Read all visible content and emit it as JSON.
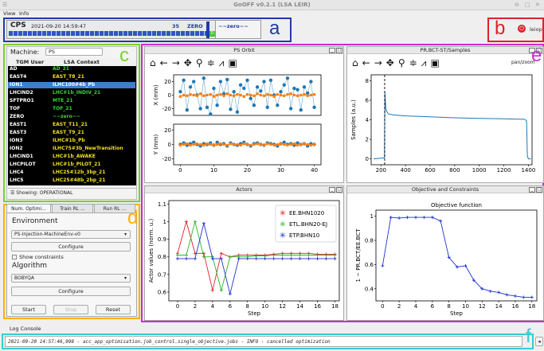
{
  "window": {
    "title": "GoOFF v0.2.1 (LSA LEIR)",
    "controls": [
      "⊖",
      "□",
      "✕"
    ]
  },
  "menu": [
    "View",
    "Info"
  ],
  "timing": {
    "machine": "CPS",
    "timestamp": "2021-09-20 14:59:47",
    "cycle": "35",
    "user": "ZERO",
    "user2": "~~zero~~",
    "badge": "0.1s"
  },
  "user_badge": "leiop",
  "labels": {
    "a": "a",
    "b": "b",
    "c": "c",
    "d": "d",
    "e": "e",
    "f": "f"
  },
  "colors": {
    "blue": "#1f3ba8",
    "red": "#e0202a",
    "green": "#7ccf2e",
    "magenta": "#cc2ad0",
    "orange": "#ffb000",
    "cyan": "#36cbd6",
    "selected": "#3b7fd0"
  },
  "selector": {
    "machine_label": "Machine:",
    "machine_value": "PS",
    "headers": [
      "TGM User",
      "LSA Context"
    ],
    "rows": [
      {
        "user": "AD",
        "context": "AD_21",
        "color": "#39d639"
      },
      {
        "user": "EAST4",
        "context": "EAST_T8_21",
        "color": "#f0e020"
      },
      {
        "user": "ION1",
        "context": "ILHC100#4b_Pb",
        "color": "#ffffff",
        "selected": true
      },
      {
        "user": "LHCIND2",
        "context": "LHC#1b_INDIV_21",
        "color": "#39d639"
      },
      {
        "user": "SFTPRO1",
        "context": "MTE_21",
        "color": "#39d639"
      },
      {
        "user": "TOF",
        "context": "TOF_21",
        "color": "#39d639"
      },
      {
        "user": "ZERO",
        "context": "~~zero~~",
        "color": "#39d639"
      },
      {
        "user": "EAST1",
        "context": "EAST_T11_21",
        "color": "#f0e020"
      },
      {
        "user": "EAST3",
        "context": "EAST_T9_21",
        "color": "#f0e020"
      },
      {
        "user": "ION3",
        "context": "ILHC#1b_Pb",
        "color": "#f0e020"
      },
      {
        "user": "ION2",
        "context": "ILHC75#3b_NewTransition",
        "color": "#f0e020"
      },
      {
        "user": "LHCIND1",
        "context": "LHC#1b_AWAKE",
        "color": "#f0e020"
      },
      {
        "user": "LHCPILOT",
        "context": "LHC#1b_PILOT_21",
        "color": "#f0e020"
      },
      {
        "user": "LHC4",
        "context": "LHC25#12b_3bp_21",
        "color": "#f0e020"
      },
      {
        "user": "LHC5",
        "context": "LHC25#48b_2bp_21",
        "color": "#f0e020"
      }
    ],
    "filter": "Showing: OPERATIONAL"
  },
  "controls": {
    "tabs": [
      "Num. Optimi...",
      "Train RL ...",
      "Run RL ..."
    ],
    "env_heading": "Environment",
    "env_value": "PS-Injection-MachineEnv-v0",
    "configure": "Configure",
    "show_constraints": "Show constraints",
    "algo_heading": "Algorithm",
    "algo_value": "BOBYQA",
    "start": "Start",
    "stop": "Stop",
    "reset": "Reset"
  },
  "panels": {
    "orbit": "PS Orbit",
    "bct": "PR.BCT-ST/Samples",
    "actors": "Actors",
    "objective": "Objective and Constraints"
  },
  "toolbar_icons": [
    "home-icon",
    "back-icon",
    "forward-icon",
    "pan-icon",
    "zoom-icon",
    "configure-icon",
    "edit-curves-icon",
    "save-icon"
  ],
  "pan_zoom": "pan/zoom",
  "log": {
    "title": "Log Console",
    "text": "2021-09-20 14:57:46,998 - acc_app_optimisation.job_control.single_objective.jobs - INFO - cancelled optimization"
  },
  "chart_data": [
    {
      "type": "scatter",
      "title": "",
      "ylabel": "X (mm)",
      "xlabel": "",
      "xlim": [
        -2,
        42
      ],
      "ylim": [
        -30,
        30
      ],
      "yticks": [
        -20,
        0,
        20
      ],
      "xticks": [],
      "series": [
        {
          "name": "",
          "color": "#1f77b4",
          "values": [
            5,
            22,
            -22,
            12,
            20,
            0,
            -20,
            25,
            -18,
            -28,
            10,
            -15,
            20,
            2,
            23,
            -21,
            5,
            -25,
            15,
            10,
            22,
            -5,
            -15,
            12,
            6,
            20,
            -18,
            22,
            0,
            -15,
            5,
            15,
            25,
            -20,
            10,
            8,
            -22,
            12,
            3,
            20,
            -18
          ]
        },
        {
          "name": "",
          "color": "#ff7f0e",
          "values": [
            -2,
            0,
            -1,
            1,
            0,
            -1,
            2,
            -1,
            0,
            1,
            -2,
            0,
            1,
            -1,
            2,
            0,
            -1,
            1,
            0,
            -2,
            1,
            0,
            -1,
            2,
            0,
            -1,
            1,
            0,
            -2,
            1,
            0,
            -1,
            1,
            2,
            0,
            -1,
            0,
            1,
            -1,
            0,
            1
          ]
        }
      ]
    },
    {
      "type": "scatter",
      "title": "",
      "ylabel": "Y (mm)",
      "xlabel": "",
      "xlim": [
        -2,
        42
      ],
      "ylim": [
        -28,
        28
      ],
      "yticks": [
        -20,
        0,
        20
      ],
      "xticks": [
        0,
        10,
        20,
        30,
        40
      ],
      "series": [
        {
          "name": "",
          "color": "#1f77b4",
          "values": [
            0,
            2,
            -1,
            1,
            3,
            0,
            -2,
            1,
            0,
            2,
            -1,
            3,
            0,
            1,
            -2,
            2,
            0,
            -1,
            1,
            3,
            0,
            -2,
            1,
            2,
            0,
            -1,
            2,
            1,
            0,
            -2,
            1,
            3,
            0,
            1,
            -1,
            2,
            0,
            1,
            -2,
            1,
            0
          ]
        },
        {
          "name": "",
          "color": "#ff7f0e",
          "values": [
            -1,
            0,
            1,
            -1,
            0,
            1,
            0,
            -1,
            1,
            0,
            -1,
            0,
            1,
            0,
            -1,
            1,
            0,
            0,
            -1,
            1,
            0,
            -1,
            0,
            1,
            0,
            -1,
            1,
            0,
            -1,
            0,
            1,
            0,
            -1,
            0,
            1,
            -1,
            0,
            1,
            0,
            -1,
            0
          ]
        }
      ]
    },
    {
      "type": "line",
      "title": "",
      "ylabel": "Samples (a.u.)",
      "xlabel": "",
      "xlim": [
        120,
        1430
      ],
      "ylim": [
        -0.6,
        8.6
      ],
      "yticks": [
        0,
        2,
        4,
        6,
        8
      ],
      "xticks": [
        200,
        400,
        600,
        800,
        1000,
        1200,
        1400
      ],
      "marker_x": 230,
      "series": [
        {
          "name": "",
          "color": "#1f77b4",
          "points": [
            [
              140,
              0.0
            ],
            [
              180,
              0.05
            ],
            [
              220,
              0.1
            ],
            [
              228,
              0.1
            ],
            [
              232,
              6.8
            ],
            [
              240,
              5.0
            ],
            [
              260,
              4.6
            ],
            [
              300,
              4.5
            ],
            [
              400,
              4.4
            ],
            [
              600,
              4.3
            ],
            [
              800,
              4.2
            ],
            [
              1000,
              4.15
            ],
            [
              1200,
              4.1
            ],
            [
              1370,
              4.05
            ],
            [
              1385,
              3.9
            ],
            [
              1392,
              0.3
            ],
            [
              1400,
              0.0
            ],
            [
              1420,
              0.0
            ]
          ]
        }
      ]
    },
    {
      "type": "line",
      "title": "",
      "ylabel": "Actor values (norm. u.)",
      "xlabel": "Step",
      "xlim": [
        -1,
        18.5
      ],
      "ylim": [
        0.55,
        1.12
      ],
      "yticks": [
        0.6,
        0.7,
        0.8,
        0.9,
        1.0,
        1.1
      ],
      "xticks": [
        0,
        2,
        4,
        6,
        8,
        10,
        12,
        14,
        16,
        18
      ],
      "legend": "top-right",
      "series": [
        {
          "name": "EE.BHN1020",
          "color": "#e0202a",
          "values": [
            0.82,
            1.0,
            0.82,
            0.82,
            0.61,
            0.82,
            0.8,
            0.81,
            0.81,
            0.81,
            0.81,
            0.815,
            0.82,
            0.82,
            0.82,
            0.82,
            0.815,
            0.815,
            0.815
          ]
        },
        {
          "name": "ETL.BHN20-EJ",
          "color": "#2ab52a",
          "values": [
            0.81,
            0.81,
            1.0,
            0.8,
            0.8,
            0.61,
            0.8,
            0.8,
            0.8,
            0.805,
            0.805,
            0.81,
            0.81,
            0.81,
            0.81,
            0.81,
            0.81,
            0.81,
            0.81
          ]
        },
        {
          "name": "ETP.BHN10",
          "color": "#1f2fd0",
          "values": [
            0.79,
            0.79,
            0.79,
            0.99,
            0.79,
            0.79,
            0.59,
            0.79,
            0.79,
            0.79,
            0.79,
            0.79,
            0.79,
            0.79,
            0.79,
            0.79,
            0.79,
            0.79,
            0.79
          ]
        }
      ]
    },
    {
      "type": "line",
      "title": "Objective function",
      "ylabel": "1 − PR.BCT/EE.BCT",
      "xlabel": "Step",
      "xlim": [
        -0.8,
        18.6
      ],
      "ylim": [
        0.3,
        1.05
      ],
      "yticks": [
        0.4,
        0.6,
        0.8,
        1
      ],
      "xticks": [
        0,
        2,
        4,
        6,
        8,
        10,
        12,
        14,
        16,
        18
      ],
      "series": [
        {
          "name": "",
          "color": "#1f2fd0",
          "values": [
            0.59,
            0.99,
            0.985,
            0.99,
            0.99,
            0.99,
            0.99,
            0.96,
            0.66,
            0.58,
            0.59,
            0.47,
            0.4,
            0.38,
            0.37,
            0.35,
            0.34,
            0.33,
            0.33
          ]
        }
      ]
    }
  ]
}
